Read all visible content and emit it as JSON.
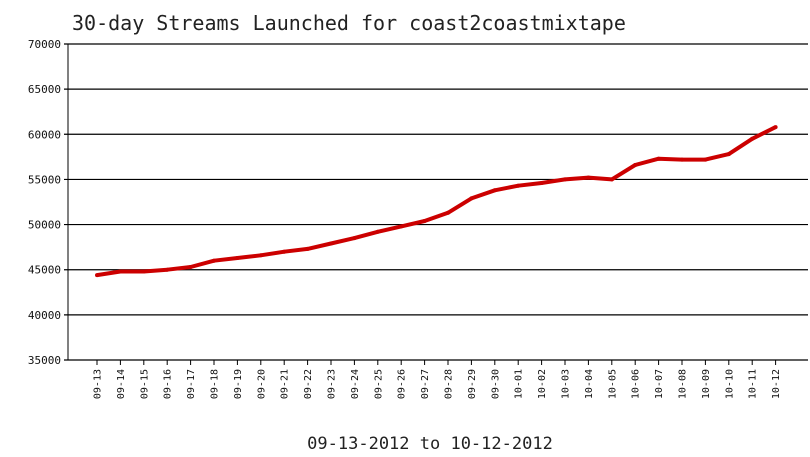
{
  "chart_data": {
    "type": "line",
    "title": "30-day Streams Launched for coast2coastmixtape",
    "xlabel": "09-13-2012  to  10-12-2012",
    "ylabel": "",
    "ylim": [
      35000,
      70000
    ],
    "yticks": [
      70000,
      65000,
      60000,
      55000,
      50000,
      45000,
      40000,
      35000
    ],
    "grid": true,
    "categories": [
      "09-13",
      "09-14",
      "09-15",
      "09-16",
      "09-17",
      "09-18",
      "09-19",
      "09-20",
      "09-21",
      "09-22",
      "09-23",
      "09-24",
      "09-25",
      "09-26",
      "09-27",
      "09-28",
      "09-29",
      "09-30",
      "10-01",
      "10-02",
      "10-03",
      "10-04",
      "10-05",
      "10-06",
      "10-07",
      "10-08",
      "10-09",
      "10-10",
      "10-11",
      "10-12"
    ],
    "series": [
      {
        "color": "#cc0000",
        "values": [
          44400,
          44800,
          44800,
          45000,
          45300,
          46000,
          46300,
          46600,
          47000,
          47300,
          47900,
          48500,
          49200,
          49800,
          50400,
          51300,
          52900,
          53800,
          54300,
          54600,
          55000,
          55200,
          55000,
          56600,
          57300,
          57200,
          57200,
          57800,
          59500,
          60800
        ]
      }
    ]
  }
}
